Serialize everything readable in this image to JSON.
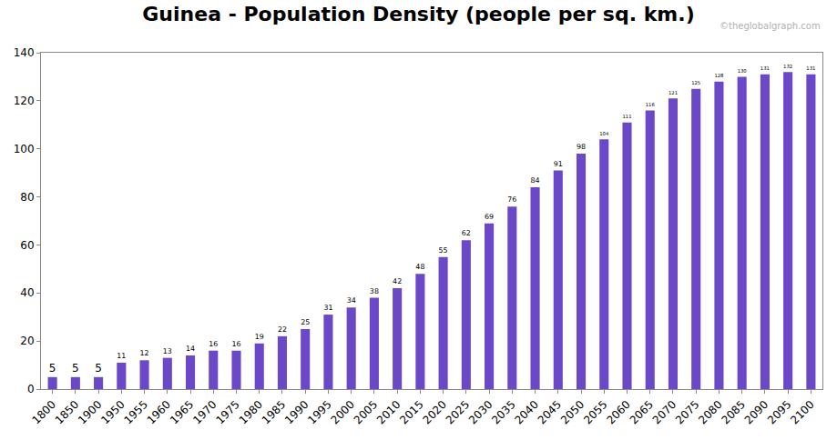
{
  "chart_data": {
    "type": "bar",
    "title": "Guinea - Population Density (people per sq. km.)",
    "categories": [
      "1800",
      "1850",
      "1900",
      "1950",
      "1955",
      "1960",
      "1965",
      "1970",
      "1975",
      "1980",
      "1985",
      "1990",
      "1995",
      "2000",
      "2005",
      "2010",
      "2015",
      "2020",
      "2025",
      "2030",
      "2035",
      "2040",
      "2045",
      "2050",
      "2055",
      "2060",
      "2065",
      "2070",
      "2075",
      "2080",
      "2085",
      "2090",
      "2095",
      "2100"
    ],
    "values": [
      5,
      5,
      5,
      11,
      12,
      13,
      14,
      16,
      16,
      19,
      22,
      25,
      31,
      34,
      38,
      42,
      48,
      55,
      62,
      69,
      76,
      84,
      91,
      98,
      104,
      111,
      116,
      121,
      125,
      128,
      130,
      131,
      132,
      131
    ],
    "color": "#6a48c8",
    "ylim": [
      0,
      140
    ],
    "yticks": [
      0,
      20,
      40,
      60,
      80,
      100,
      120,
      140
    ],
    "grid": false,
    "data_labels": true,
    "annotations": [
      {
        "text": "©theglobalgraph.com"
      }
    ]
  }
}
